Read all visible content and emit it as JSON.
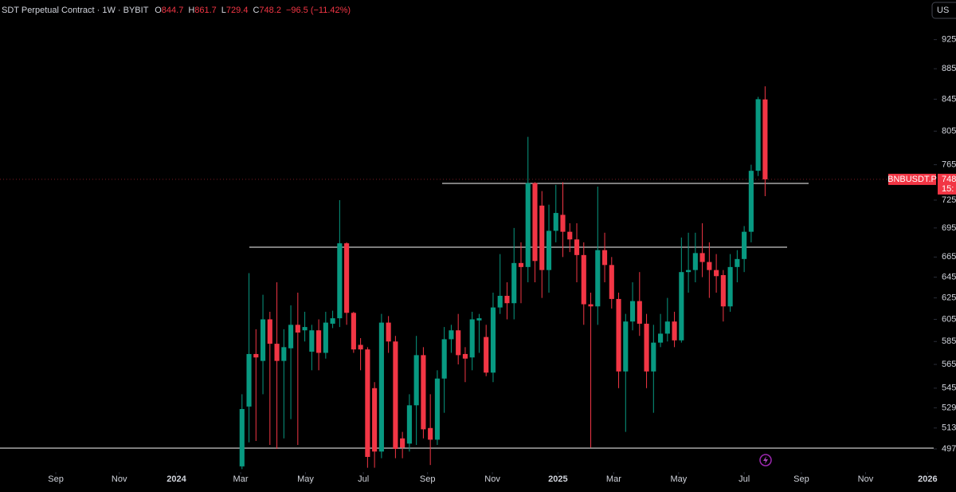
{
  "header": {
    "title": "SDT Perpetual Contract · 1W · BYBIT",
    "o_label": "O",
    "o": "844.7",
    "h_label": "H",
    "h": "861.7",
    "l_label": "L",
    "l": "729.4",
    "c_label": "C",
    "c": "748.2",
    "change": "−96.5 (−11.42%)"
  },
  "currency_button": "US",
  "price_tag": {
    "symbol": "BNBUSDT.P",
    "price": "748",
    "countdown": "15:"
  },
  "chart_data": {
    "type": "candlestick",
    "x": [
      0,
      1,
      2,
      3,
      4,
      5,
      6,
      7,
      8,
      9,
      10,
      11,
      12,
      13,
      14,
      15,
      16,
      17,
      18,
      19,
      20,
      21,
      22,
      23,
      24,
      25,
      26,
      27,
      28,
      29,
      30,
      31,
      32,
      33,
      34,
      35,
      36,
      37,
      38,
      39,
      40,
      41,
      42,
      43,
      44,
      45,
      46,
      47,
      48,
      49,
      50,
      51,
      52,
      53,
      54,
      55,
      56,
      57,
      58,
      59,
      60,
      61,
      62,
      63,
      64,
      65,
      66,
      67,
      68,
      69,
      70,
      71,
      72,
      73,
      74,
      75
    ],
    "open": [
      484,
      530,
      574,
      568,
      605,
      583,
      568,
      579,
      600,
      595,
      576,
      595,
      575,
      601,
      606,
      679,
      611,
      582,
      578,
      545,
      495,
      602,
      585,
      505,
      501,
      531,
      573,
      513,
      504,
      553,
      587,
      595,
      574,
      571,
      604,
      589,
      558,
      616,
      627,
      620,
      659,
      655,
      744,
      719,
      652,
      692,
      709,
      691,
      683,
      667,
      619,
      617,
      672,
      657,
      624,
      559,
      603,
      622,
      601,
      559,
      584,
      592,
      603,
      586,
      650,
      652,
      669,
      660,
      652,
      647,
      617,
      655,
      663,
      691,
      758,
      844.7
    ],
    "high": [
      540,
      649,
      596,
      628,
      612,
      640,
      596,
      618,
      630,
      612,
      600,
      605,
      612,
      613,
      725,
      680,
      612,
      588,
      580,
      550,
      610,
      608,
      590,
      510,
      540,
      590,
      580,
      540,
      560,
      598,
      600,
      610,
      580,
      612,
      610,
      600,
      630,
      668,
      640,
      695,
      680,
      798,
      745,
      735,
      720,
      742,
      745,
      700,
      700,
      680,
      630,
      740,
      690,
      665,
      630,
      610,
      640,
      650,
      610,
      600,
      610,
      625,
      612,
      685,
      690,
      690,
      700,
      680,
      668,
      652,
      668,
      672,
      697,
      765,
      848,
      861.7
    ],
    "low": [
      482,
      502,
      503,
      540,
      500,
      497,
      505,
      520,
      500,
      585,
      560,
      560,
      570,
      597,
      598,
      600,
      575,
      560,
      483,
      483,
      490,
      575,
      490,
      490,
      495,
      500,
      505,
      485,
      500,
      525,
      575,
      565,
      550,
      560,
      575,
      555,
      550,
      610,
      605,
      605,
      620,
      640,
      640,
      625,
      630,
      680,
      665,
      670,
      640,
      600,
      498,
      600,
      640,
      615,
      545,
      510,
      595,
      590,
      545,
      525,
      580,
      585,
      580,
      584,
      630,
      640,
      645,
      625,
      630,
      603,
      612,
      640,
      650,
      680,
      752,
      729.4
    ],
    "close": [
      528,
      574,
      571,
      605,
      583,
      568,
      580,
      600,
      593,
      598,
      595,
      575,
      602,
      606,
      679,
      611,
      578,
      578,
      491,
      495,
      602,
      585,
      497,
      498,
      531,
      573,
      512,
      504,
      553,
      587,
      595,
      573,
      570,
      605,
      606,
      558,
      616,
      627,
      620,
      659,
      655,
      744,
      661,
      652,
      692,
      711,
      691,
      683,
      667,
      619,
      617,
      672,
      657,
      624,
      559,
      603,
      622,
      601,
      559,
      584,
      592,
      603,
      586,
      650,
      652,
      669,
      660,
      652,
      646,
      617,
      655,
      663,
      691,
      758,
      845,
      748.2
    ],
    "up_color": "#089981",
    "down_color": "#f23645",
    "log_scale": true,
    "ylim": [
      481,
      953
    ],
    "yticks": [
      925,
      885,
      845,
      805,
      765,
      725,
      695,
      665,
      645,
      625,
      605,
      585,
      565,
      545,
      529,
      513,
      497
    ],
    "xlim": [
      -34.7,
      98.6
    ],
    "xticks": [
      {
        "value": -26.7,
        "label": "Sep"
      },
      {
        "value": -17.6,
        "label": "Nov"
      },
      {
        "value": -9.4,
        "label": "2024"
      },
      {
        "value": -0.2,
        "label": "Mar"
      },
      {
        "value": 9.1,
        "label": "May"
      },
      {
        "value": 17.4,
        "label": "Jul"
      },
      {
        "value": 26.6,
        "label": "Sep"
      },
      {
        "value": 35.9,
        "label": "Nov"
      },
      {
        "value": 45.3,
        "label": "2025"
      },
      {
        "value": 53.3,
        "label": "Mar"
      },
      {
        "value": 62.6,
        "label": "May"
      },
      {
        "value": 72.0,
        "label": "Jul"
      },
      {
        "value": 80.2,
        "label": "Sep"
      },
      {
        "value": 89.4,
        "label": "Nov"
      },
      {
        "value": 98.3,
        "label": "2026"
      }
    ],
    "grid": false
  }
}
